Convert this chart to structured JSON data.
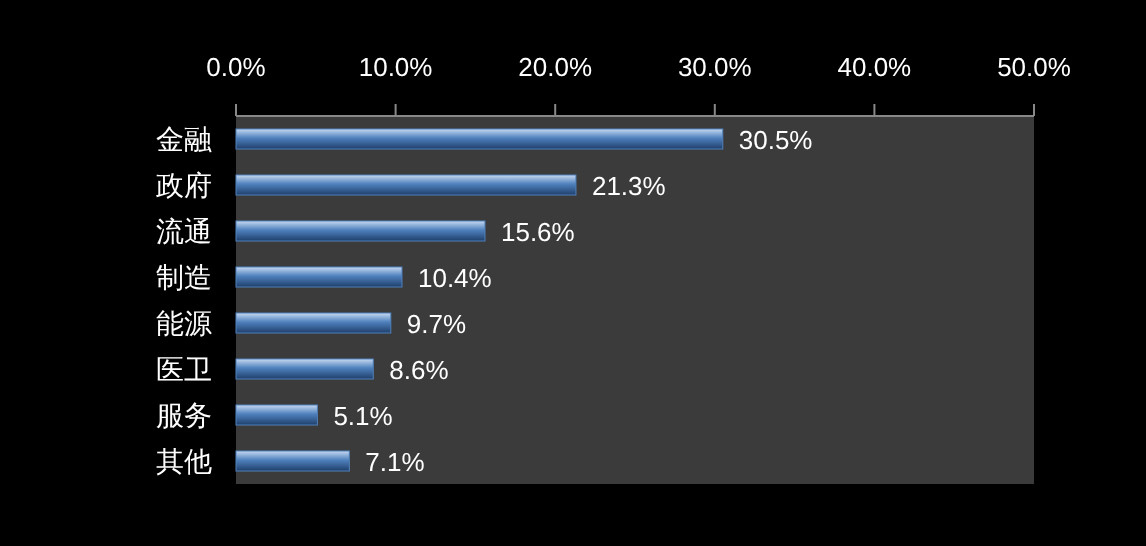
{
  "chart_data": {
    "type": "bar",
    "orientation": "horizontal",
    "categories": [
      "金融",
      "政府",
      "流通",
      "制造",
      "能源",
      "医卫",
      "服务",
      "其他"
    ],
    "values": [
      30.5,
      21.3,
      15.6,
      10.4,
      9.7,
      8.6,
      5.1,
      7.1
    ],
    "value_labels": [
      "30.5%",
      "21.3%",
      "15.6%",
      "10.4%",
      "9.7%",
      "8.6%",
      "5.1%",
      "7.1%"
    ],
    "color": "#4f81bd",
    "xlim": [
      0,
      50
    ],
    "xticks": [
      {
        "value": 0,
        "label": "0.0%"
      },
      {
        "value": 10,
        "label": "10.0%"
      },
      {
        "value": 20,
        "label": "20.0%"
      },
      {
        "value": 30,
        "label": "30.0%"
      },
      {
        "value": 40,
        "label": "40.0%"
      },
      {
        "value": 50,
        "label": "50.0%"
      }
    ]
  }
}
